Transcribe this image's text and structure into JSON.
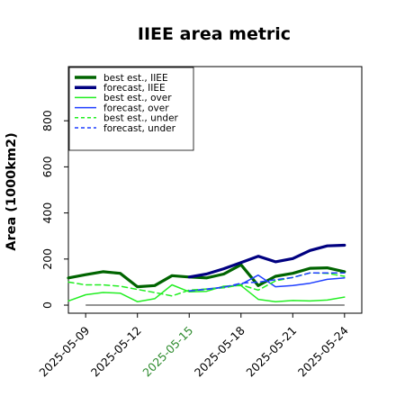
{
  "chart_data": {
    "type": "line",
    "title": "IIEE area metric",
    "ylabel": "Area (1000km2)",
    "xlabel": "",
    "ylim": [
      -35,
      1035
    ],
    "yticks": [
      0,
      200,
      400,
      600,
      800
    ],
    "ytick_labels": [
      "0",
      "200",
      "400",
      "600",
      "800"
    ],
    "xlim": [
      "2025-05-08",
      "2025-05-25"
    ],
    "xticks": [
      "2025-05-09",
      "2025-05-12",
      "2025-05-15",
      "2025-05-18",
      "2025-05-21",
      "2025-05-24"
    ],
    "xtick_labels": [
      "2025-05-09",
      "2025-05-12",
      "2025-05-15",
      "2025-05-18",
      "2025-05-21",
      "2025-05-24"
    ],
    "highlighted_xtick": "2025-05-15",
    "highlight_color": "#2e8b2e",
    "grid": false,
    "legend_position": "upper-left",
    "zero_line": {
      "y": 0,
      "from": "2025-05-09",
      "to": "2025-05-24",
      "color": "#555555"
    },
    "series": [
      {
        "name": "best est., IIEE",
        "color": "#006400",
        "width": 3.2,
        "dash": "",
        "x": [
          "2025-05-08",
          "2025-05-09",
          "2025-05-10",
          "2025-05-11",
          "2025-05-12",
          "2025-05-13",
          "2025-05-14",
          "2025-05-15",
          "2025-05-16",
          "2025-05-17",
          "2025-05-18",
          "2025-05-19",
          "2025-05-20",
          "2025-05-21",
          "2025-05-22",
          "2025-05-23",
          "2025-05-24"
        ],
        "y": [
          118,
          132,
          145,
          138,
          80,
          85,
          128,
          122,
          118,
          135,
          175,
          85,
          125,
          138,
          160,
          162,
          145
        ]
      },
      {
        "name": "forecast, IIEE",
        "color": "#000080",
        "width": 3.2,
        "dash": "",
        "x": [
          "2025-05-15",
          "2025-05-16",
          "2025-05-17",
          "2025-05-18",
          "2025-05-19",
          "2025-05-20",
          "2025-05-21",
          "2025-05-22",
          "2025-05-23",
          "2025-05-24"
        ],
        "y": [
          122,
          135,
          158,
          185,
          212,
          188,
          202,
          237,
          257,
          260
        ]
      },
      {
        "name": "best est., over",
        "color": "#22ee22",
        "width": 1.5,
        "dash": "",
        "x": [
          "2025-05-08",
          "2025-05-09",
          "2025-05-10",
          "2025-05-11",
          "2025-05-12",
          "2025-05-13",
          "2025-05-14",
          "2025-05-15",
          "2025-05-16",
          "2025-05-17",
          "2025-05-18",
          "2025-05-19",
          "2025-05-20",
          "2025-05-21",
          "2025-05-22",
          "2025-05-23",
          "2025-05-24"
        ],
        "y": [
          18,
          45,
          55,
          52,
          15,
          28,
          88,
          58,
          60,
          82,
          85,
          25,
          15,
          20,
          18,
          22,
          35
        ]
      },
      {
        "name": "forecast, over",
        "color": "#1f3fff",
        "width": 1.5,
        "dash": "",
        "x": [
          "2025-05-15",
          "2025-05-16",
          "2025-05-17",
          "2025-05-18",
          "2025-05-19",
          "2025-05-20",
          "2025-05-21",
          "2025-05-22",
          "2025-05-23",
          "2025-05-24"
        ],
        "y": [
          62,
          70,
          78,
          90,
          130,
          80,
          85,
          95,
          112,
          118
        ]
      },
      {
        "name": "best est., under",
        "color": "#22ee22",
        "width": 1.5,
        "dash": "6,4",
        "x": [
          "2025-05-08",
          "2025-05-09",
          "2025-05-10",
          "2025-05-11",
          "2025-05-12",
          "2025-05-13",
          "2025-05-14",
          "2025-05-15",
          "2025-05-16",
          "2025-05-17",
          "2025-05-18",
          "2025-05-19",
          "2025-05-20",
          "2025-05-21",
          "2025-05-22",
          "2025-05-23",
          "2025-05-24"
        ],
        "y": [
          100,
          88,
          88,
          82,
          68,
          55,
          40,
          65,
          70,
          75,
          88,
          65,
          105,
          120,
          140,
          138,
          125
        ]
      },
      {
        "name": "forecast, under",
        "color": "#1f3fff",
        "width": 1.5,
        "dash": "6,4",
        "x": [
          "2025-05-15",
          "2025-05-16",
          "2025-05-17",
          "2025-05-18",
          "2025-05-19",
          "2025-05-20",
          "2025-05-21",
          "2025-05-22",
          "2025-05-23",
          "2025-05-24"
        ],
        "y": [
          62,
          68,
          78,
          95,
          100,
          110,
          120,
          140,
          140,
          140
        ]
      }
    ]
  }
}
